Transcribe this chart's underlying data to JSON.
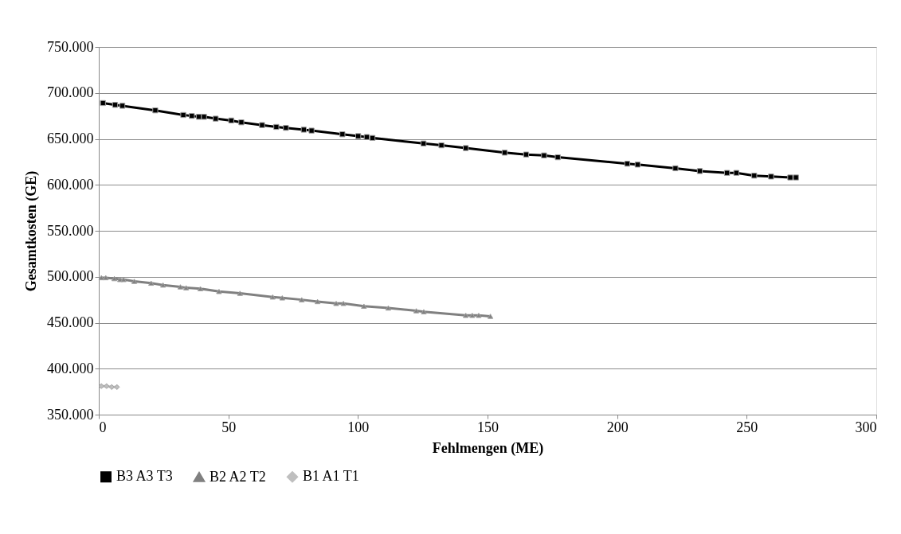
{
  "chart_data": {
    "type": "line",
    "xlabel": "Fehlmengen (ME)",
    "ylabel": "Gesamtkosten (GE)",
    "xlim": [
      0,
      300
    ],
    "xticks": [
      0,
      50,
      100,
      150,
      200,
      250,
      300
    ],
    "ylim": [
      350000,
      750000
    ],
    "yticks": [
      {
        "value": 350000,
        "label": "350.000"
      },
      {
        "value": 400000,
        "label": "400.000"
      },
      {
        "value": 450000,
        "label": "450.000"
      },
      {
        "value": 500000,
        "label": "500.000"
      },
      {
        "value": 550000,
        "label": "550.000"
      },
      {
        "value": 600000,
        "label": "600.000"
      },
      {
        "value": 650000,
        "label": "650.000"
      },
      {
        "value": 700000,
        "label": "700.000"
      },
      {
        "value": 750000,
        "label": "750.000"
      }
    ],
    "grid": "y",
    "legend": "bottom",
    "line_style": "solid",
    "series": [
      {
        "name": "B3 A3 T3",
        "color": "#000000",
        "marker": "square",
        "x": [
          1.6,
          6.3,
          9.1,
          21.8,
          32.6,
          35.9,
          38.6,
          40.6,
          45.1,
          51.1,
          55.0,
          63.0,
          68.5,
          72.2,
          79.1,
          82.1,
          94.0,
          100.1,
          103.4,
          105.6,
          125.3,
          132.2,
          141.6,
          156.6,
          164.9,
          171.8,
          177.1,
          203.9,
          207.9,
          222.5,
          231.9,
          242.4,
          246.0,
          252.9,
          259.4,
          266.8,
          269.0
        ],
        "values": [
          689000,
          687000,
          686000,
          681000,
          676000,
          675000,
          674000,
          674000,
          672000,
          670000,
          668000,
          665000,
          663000,
          662000,
          660000,
          659000,
          655000,
          653000,
          652000,
          651000,
          645000,
          643000,
          640000,
          635000,
          633000,
          632000,
          630000,
          623000,
          622000,
          618000,
          615000,
          613000,
          613000,
          610000,
          609000,
          608000,
          608000
        ]
      },
      {
        "name": "B2 A2 T2",
        "color": "#808080",
        "marker": "triangle",
        "x": [
          1.0,
          2.7,
          6.0,
          8.2,
          9.6,
          13.7,
          20.2,
          24.8,
          31.5,
          33.7,
          39.2,
          46.4,
          54.5,
          67.1,
          70.8,
          78.3,
          84.4,
          91.6,
          94.4,
          102.3,
          111.7,
          122.5,
          125.4,
          141.6,
          144.1,
          146.6,
          151.1
        ],
        "values": [
          499000,
          499000,
          498000,
          497000,
          497000,
          495000,
          493000,
          491000,
          489000,
          488000,
          487000,
          484000,
          482000,
          478000,
          477000,
          475000,
          473000,
          471000,
          471000,
          468000,
          466000,
          463000,
          462000,
          458000,
          458000,
          458000,
          457000
        ]
      },
      {
        "name": "B1 A1 T1",
        "color": "#bfbfbf",
        "marker": "diamond",
        "x": [
          1,
          3,
          5,
          7
        ],
        "values": [
          381000,
          381000,
          380000,
          380000
        ]
      }
    ]
  }
}
